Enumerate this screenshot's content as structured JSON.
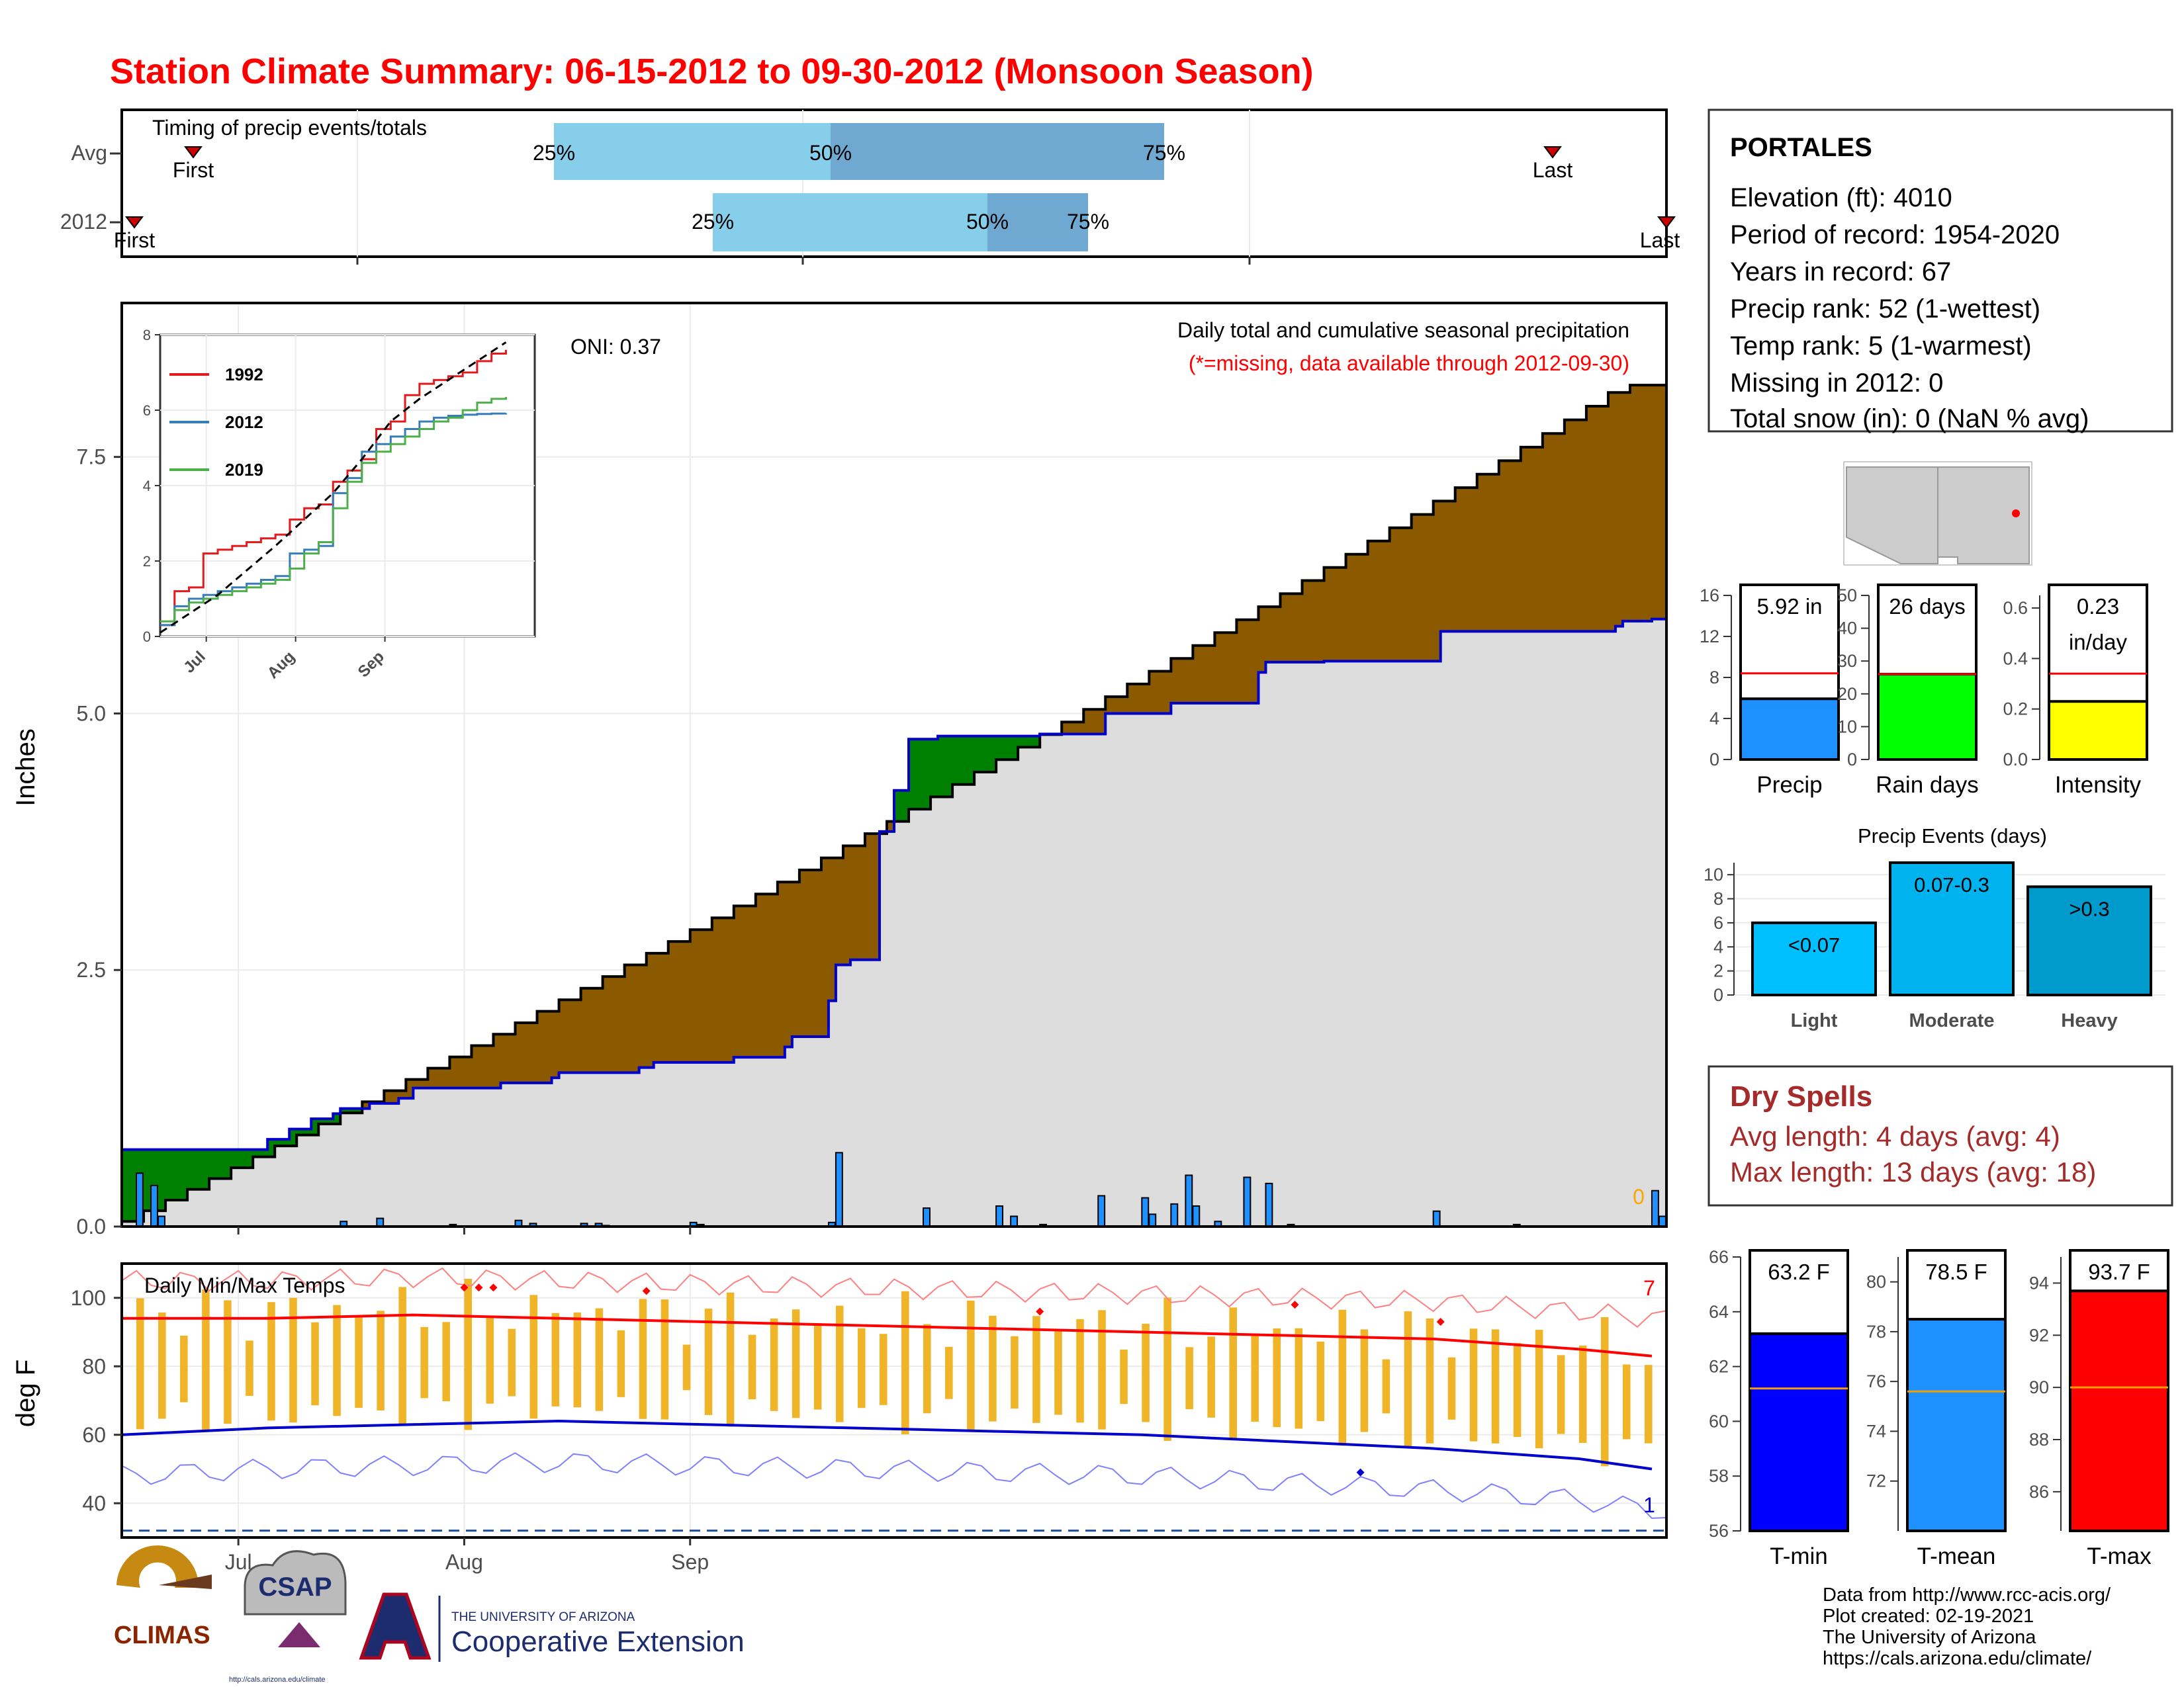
{
  "page": {
    "title": "Station Climate Summary: 06-15-2012 to 09-30-2012 (Monsoon Season)",
    "credits": [
      "Data from http://www.rcc-acis.org/",
      "Plot created: 02-19-2021",
      "The University of Arizona",
      "https://cals.arizona.edu/climate/"
    ],
    "logos": {
      "climas": "CLIMAS",
      "csap": "CSAP",
      "csap_url": "http://cals.arizona.edu/climate",
      "ua_small": "THE UNIVERSITY OF ARIZONA",
      "ua_big": "Cooperative Extension"
    },
    "colors": {
      "title": "#ff0000",
      "deficit": "#8b5a00",
      "surplus": "#008000",
      "obs_bar": "#1e90ff",
      "normal_fill": "#dddddd",
      "avg_line": "#ff0000"
    }
  },
  "chart_data": [
    {
      "id": "timing",
      "type": "bar",
      "title": "Timing of precip events/totals",
      "categories": [
        "Avg",
        "2012"
      ],
      "markers": {
        "Avg": {
          "first": "First",
          "last": "Last"
        },
        "2012": {
          "first": "First",
          "last": "Last"
        }
      },
      "quantile_labels": [
        "25%",
        "50%",
        "75%"
      ],
      "colors": {
        "q1": "#87ceeb",
        "q2": "#6fa8d0",
        "marker": "#cc0000"
      }
    },
    {
      "id": "precip",
      "type": "area",
      "ylabel": "Inches",
      "ylim": [
        0,
        9.0
      ],
      "yticks": [
        "0.0",
        "2.5",
        "5.0",
        "7.5"
      ],
      "xticks": [
        "Jul",
        "Aug",
        "Sep"
      ],
      "annotation_title": "Daily total and cumulative seasonal precipitation",
      "annotation_missing": "(*=missing, data available through 2012-09-30)",
      "oni": "ONI: 0.37",
      "missing_count": "0",
      "normal_cumulative_endpoint": 8.2,
      "observed_cumulative_endpoint": 5.92,
      "observed_steps": [
        [
          0,
          0.75
        ],
        [
          16,
          0.75
        ],
        [
          17,
          0.75
        ],
        [
          20,
          0.85
        ],
        [
          23,
          0.95
        ],
        [
          26,
          1.05
        ],
        [
          29,
          1.1
        ],
        [
          30,
          1.15
        ],
        [
          34,
          1.2
        ],
        [
          38,
          1.25
        ],
        [
          40,
          1.35
        ],
        [
          48,
          1.35
        ],
        [
          52,
          1.4
        ],
        [
          59,
          1.45
        ],
        [
          60,
          1.5
        ],
        [
          71,
          1.55
        ],
        [
          73,
          1.6
        ],
        [
          84,
          1.65
        ],
        [
          91,
          1.75
        ],
        [
          92,
          1.85
        ],
        [
          97,
          2.2
        ],
        [
          98,
          2.55
        ],
        [
          100,
          2.6
        ],
        [
          104,
          3.85
        ],
        [
          106,
          4.25
        ],
        [
          108,
          4.75
        ],
        [
          112,
          4.78
        ],
        [
          126,
          4.8
        ],
        [
          135,
          5.0
        ],
        [
          144,
          5.1
        ],
        [
          156,
          5.4
        ],
        [
          157,
          5.5
        ],
        [
          165,
          5.51
        ],
        [
          181,
          5.8
        ],
        [
          205,
          5.85
        ],
        [
          206,
          5.9
        ],
        [
          210,
          5.92
        ]
      ],
      "daily_bars": [
        [
          2,
          0.52
        ],
        [
          4,
          0.4
        ],
        [
          5,
          0.1
        ],
        [
          30,
          0.05
        ],
        [
          35,
          0.08
        ],
        [
          45,
          0.02
        ],
        [
          54,
          0.06
        ],
        [
          56,
          0.03
        ],
        [
          63,
          0.03
        ],
        [
          65,
          0.03
        ],
        [
          66,
          0.01
        ],
        [
          78,
          0.04
        ],
        [
          79,
          0.02
        ],
        [
          97,
          0.04
        ],
        [
          98,
          0.72
        ],
        [
          110,
          0.18
        ],
        [
          120,
          0.2
        ],
        [
          122,
          0.1
        ],
        [
          126,
          0.02
        ],
        [
          134,
          0.3
        ],
        [
          140,
          0.28
        ],
        [
          141,
          0.12
        ],
        [
          144,
          0.22
        ],
        [
          146,
          0.5
        ],
        [
          147,
          0.2
        ],
        [
          150,
          0.05
        ],
        [
          154,
          0.48
        ],
        [
          157,
          0.42
        ],
        [
          160,
          0.02
        ],
        [
          180,
          0.15
        ],
        [
          191,
          0.02
        ],
        [
          210,
          0.35
        ],
        [
          211,
          0.1
        ]
      ],
      "inset": {
        "type": "line",
        "ylim": [
          0,
          8
        ],
        "yticks": [
          "0",
          "2",
          "4",
          "6",
          "8"
        ],
        "xticks": [
          "Jul",
          "Aug",
          "Sep"
        ],
        "series": [
          {
            "name": "1992",
            "color": "#e41a1c",
            "values": [
              [
                0,
                0.3
              ],
              [
                5,
                1.2
              ],
              [
                10,
                1.3
              ],
              [
                15,
                2.2
              ],
              [
                20,
                2.3
              ],
              [
                25,
                2.4
              ],
              [
                30,
                2.5
              ],
              [
                35,
                2.6
              ],
              [
                40,
                2.7
              ],
              [
                45,
                3.1
              ],
              [
                50,
                3.4
              ],
              [
                55,
                3.5
              ],
              [
                60,
                4.1
              ],
              [
                65,
                4.4
              ],
              [
                70,
                4.7
              ],
              [
                75,
                5.5
              ],
              [
                80,
                5.7
              ],
              [
                85,
                6.4
              ],
              [
                90,
                6.7
              ],
              [
                95,
                6.8
              ],
              [
                100,
                6.9
              ],
              [
                105,
                7.0
              ],
              [
                110,
                7.3
              ],
              [
                115,
                7.5
              ],
              [
                120,
                7.6
              ]
            ]
          },
          {
            "name": "2012",
            "color": "#377eb8",
            "values": [
              [
                0,
                0.3
              ],
              [
                5,
                0.8
              ],
              [
                10,
                1.0
              ],
              [
                15,
                1.1
              ],
              [
                20,
                1.2
              ],
              [
                25,
                1.3
              ],
              [
                30,
                1.4
              ],
              [
                35,
                1.5
              ],
              [
                40,
                1.6
              ],
              [
                45,
                2.2
              ],
              [
                50,
                2.3
              ],
              [
                55,
                2.4
              ],
              [
                60,
                3.8
              ],
              [
                65,
                4.2
              ],
              [
                70,
                4.9
              ],
              [
                75,
                5.1
              ],
              [
                80,
                5.3
              ],
              [
                85,
                5.5
              ],
              [
                90,
                5.7
              ],
              [
                95,
                5.8
              ],
              [
                100,
                5.85
              ],
              [
                105,
                5.88
              ],
              [
                110,
                5.9
              ],
              [
                115,
                5.91
              ],
              [
                120,
                5.92
              ]
            ]
          },
          {
            "name": "2019",
            "color": "#4daf4a",
            "values": [
              [
                0,
                0.4
              ],
              [
                5,
                0.7
              ],
              [
                10,
                0.9
              ],
              [
                15,
                1.0
              ],
              [
                20,
                1.1
              ],
              [
                25,
                1.2
              ],
              [
                30,
                1.3
              ],
              [
                35,
                1.4
              ],
              [
                40,
                1.5
              ],
              [
                45,
                1.8
              ],
              [
                50,
                2.2
              ],
              [
                55,
                2.5
              ],
              [
                60,
                3.4
              ],
              [
                65,
                4.1
              ],
              [
                70,
                4.6
              ],
              [
                75,
                4.9
              ],
              [
                80,
                5.1
              ],
              [
                85,
                5.3
              ],
              [
                90,
                5.5
              ],
              [
                95,
                5.7
              ],
              [
                100,
                5.8
              ],
              [
                105,
                6.0
              ],
              [
                110,
                6.2
              ],
              [
                115,
                6.3
              ],
              [
                120,
                6.35
              ]
            ]
          },
          {
            "name": "normal",
            "color": "#000000",
            "dashed": true,
            "values": [
              [
                0,
                0.1
              ],
              [
                20,
                1.1
              ],
              [
                40,
                2.4
              ],
              [
                60,
                3.8
              ],
              [
                70,
                4.7
              ],
              [
                80,
                5.7
              ],
              [
                90,
                6.3
              ],
              [
                100,
                6.8
              ],
              [
                110,
                7.3
              ],
              [
                120,
                7.8
              ]
            ]
          }
        ]
      }
    },
    {
      "id": "temps",
      "type": "line",
      "title": "Daily Min/Max Temps",
      "ylabel": "deg F",
      "ylim": [
        30,
        110
      ],
      "yticks": [
        "40",
        "60",
        "80",
        "100"
      ],
      "xticks": [
        "Jul",
        "Aug",
        "Sep"
      ],
      "record_high_count": "7",
      "record_low_count": "1",
      "normal_high": [
        [
          0,
          94
        ],
        [
          20,
          94
        ],
        [
          40,
          95
        ],
        [
          60,
          94
        ],
        [
          80,
          93
        ],
        [
          100,
          92
        ],
        [
          120,
          91
        ],
        [
          140,
          90
        ],
        [
          160,
          89
        ],
        [
          180,
          88
        ],
        [
          200,
          85
        ],
        [
          210,
          83
        ]
      ],
      "normal_low": [
        [
          0,
          60
        ],
        [
          20,
          62
        ],
        [
          40,
          63
        ],
        [
          60,
          64
        ],
        [
          80,
          63
        ],
        [
          100,
          62
        ],
        [
          120,
          61
        ],
        [
          140,
          60
        ],
        [
          160,
          58
        ],
        [
          180,
          56
        ],
        [
          200,
          53
        ],
        [
          210,
          50
        ]
      ],
      "freeze_line": 32
    },
    {
      "id": "summary-bars",
      "type": "bar",
      "categories": [
        "Precip",
        "Rain days",
        "Intensity"
      ],
      "values": [
        5.92,
        26,
        0.23
      ],
      "labels": [
        "5.92 in",
        "26 days",
        "0.23 in/day"
      ],
      "averages": [
        8.4,
        26,
        0.34
      ],
      "yticks": [
        [
          "0",
          "4",
          "8",
          "12",
          "16"
        ],
        [
          "0",
          "10",
          "20",
          "30",
          "40",
          "50"
        ],
        [
          "0.0",
          "0.2",
          "0.4",
          "0.6"
        ]
      ],
      "ylims": [
        [
          0,
          16
        ],
        [
          0,
          50
        ],
        [
          0,
          0.65
        ]
      ],
      "colors": [
        "#1e90ff",
        "#00ff00",
        "#ffff00"
      ]
    },
    {
      "id": "events",
      "type": "bar",
      "title": "Precip Events (days)",
      "categories": [
        "Light",
        "Moderate",
        "Heavy"
      ],
      "values": [
        6,
        11,
        9
      ],
      "labels": [
        "<0.07",
        "0.07-0.3",
        ">0.3"
      ],
      "ylim": [
        0,
        11
      ],
      "yticks": [
        "0",
        "2",
        "4",
        "6",
        "8",
        "10"
      ],
      "colors": [
        "#00bfff",
        "#00b2ee",
        "#009acd"
      ]
    },
    {
      "id": "temp-bars",
      "type": "bar",
      "categories": [
        "T-min",
        "T-mean",
        "T-max"
      ],
      "values": [
        63.2,
        78.5,
        93.7
      ],
      "labels": [
        "63.2 F",
        "78.5 F",
        "93.7 F"
      ],
      "averages": [
        61.2,
        75.6,
        90.0
      ],
      "yticks": [
        [
          "56",
          "58",
          "60",
          "62",
          "64",
          "66"
        ],
        [
          "72",
          "74",
          "76",
          "78",
          "80"
        ],
        [
          "86",
          "88",
          "90",
          "92",
          "94"
        ]
      ],
      "ylims": [
        [
          56,
          66
        ],
        [
          70,
          81
        ],
        [
          84.5,
          95
        ]
      ],
      "colors": [
        "#0000ff",
        "#1e90ff",
        "#ff0000"
      ]
    }
  ],
  "station": {
    "name": "PORTALES",
    "lines": [
      "Elevation (ft): 4010",
      "Period of record: 1954-2020",
      "Years in record: 67",
      "Precip rank: 52 (1-wettest)",
      "Temp rank: 5 (1-warmest)",
      "Missing in 2012: 0",
      "Total snow (in): 0 (NaN % avg)"
    ]
  },
  "dry_spells": {
    "title": "Dry Spells",
    "avg": "Avg length: 4 days (avg: 4)",
    "max": "Max length: 13 days (avg: 18)",
    "color": "#a52a2a"
  }
}
